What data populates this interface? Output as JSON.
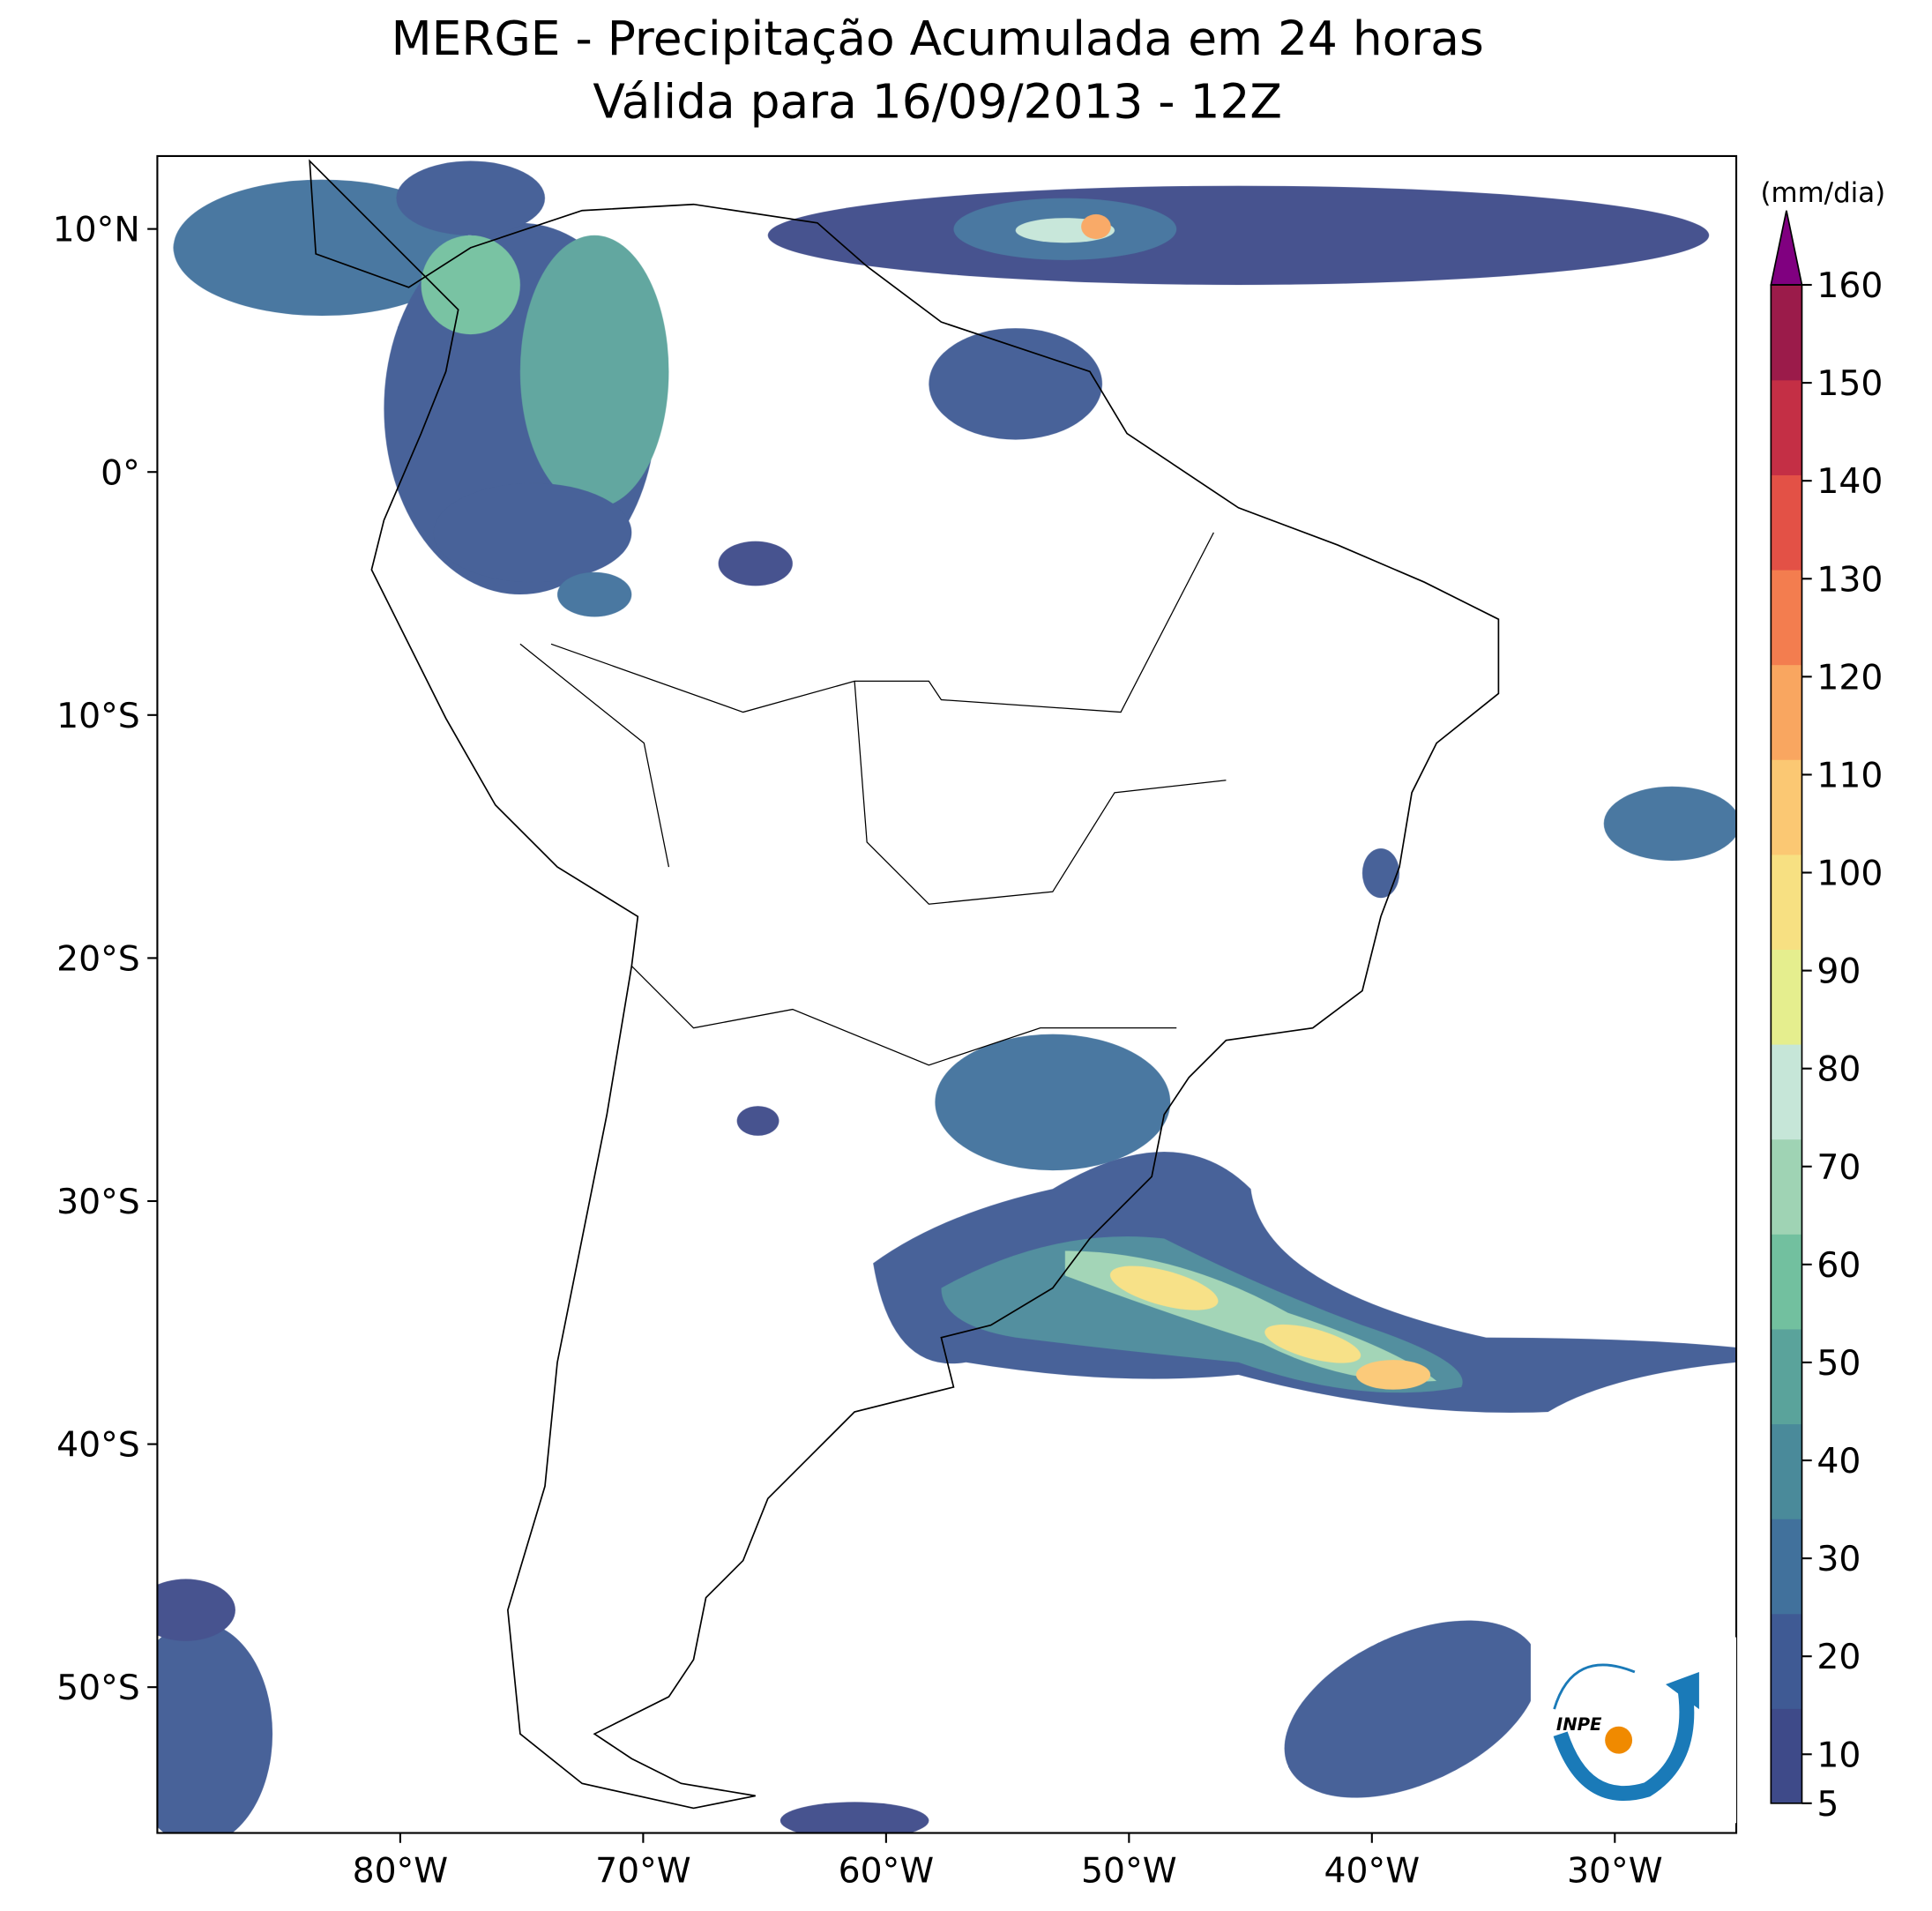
{
  "title": [
    "MERGE - Precipitação Acumulada em 24 horas",
    "Válida para 16/09/2013 - 12Z"
  ],
  "map": {
    "xlim": [
      -90,
      -25
    ],
    "ylim": [
      -56,
      13
    ],
    "xticks": [
      {
        "value": -80,
        "label": "80°W"
      },
      {
        "value": -70,
        "label": "70°W"
      },
      {
        "value": -60,
        "label": "60°W"
      },
      {
        "value": -50,
        "label": "50°W"
      },
      {
        "value": -40,
        "label": "40°W"
      },
      {
        "value": -30,
        "label": "30°W"
      }
    ],
    "yticks": [
      {
        "value": 10,
        "label": "10°N"
      },
      {
        "value": 0,
        "label": "0°"
      },
      {
        "value": -10,
        "label": "10°S"
      },
      {
        "value": -20,
        "label": "20°S"
      },
      {
        "value": -30,
        "label": "30°S"
      },
      {
        "value": -40,
        "label": "40°S"
      },
      {
        "value": -50,
        "label": "50°S"
      }
    ]
  },
  "colorbar": {
    "label": "(mm/dia)",
    "lim": [
      5,
      160
    ],
    "ticks": [
      5,
      10,
      20,
      30,
      40,
      50,
      60,
      70,
      80,
      90,
      100,
      110,
      120,
      130,
      140,
      150,
      160
    ],
    "colors": [
      "#3e4a89",
      "#3f5a94",
      "#41719c",
      "#4a8a9a",
      "#5aa39b",
      "#72c09f",
      "#9fd3b4",
      "#c6e6d8",
      "#e5ee8e",
      "#f7e082",
      "#fbc873",
      "#f9a660",
      "#f37d4f",
      "#e35146",
      "#c42f45",
      "#9b1b4a"
    ],
    "extend_color": "#800080"
  },
  "logo": {
    "text": "INPE"
  }
}
